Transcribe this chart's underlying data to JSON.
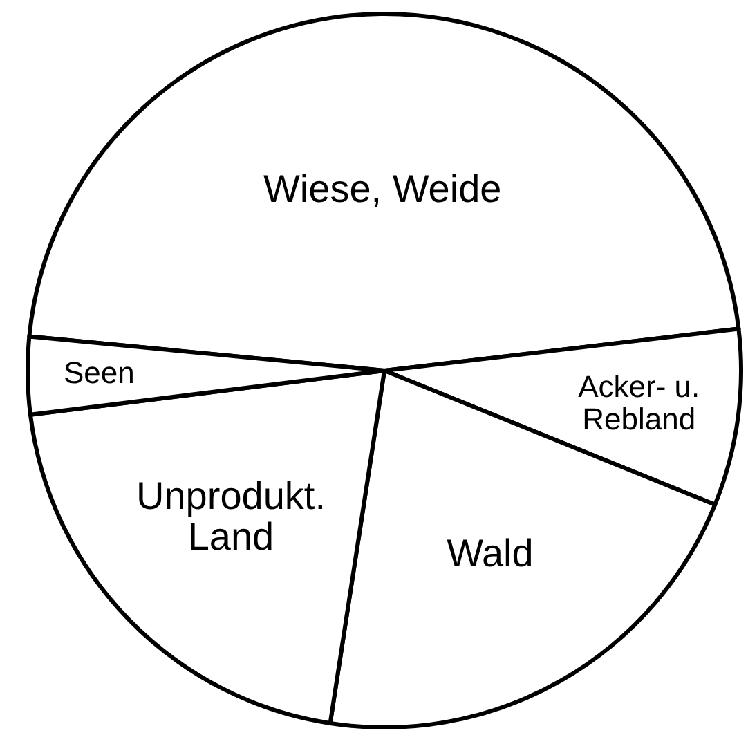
{
  "chart_data": {
    "type": "pie",
    "categories": [
      "Wiese, Weide",
      "Acker- u. Rebland",
      "Wald",
      "Unprodukt. Land",
      "Seen"
    ],
    "values": [
      46.6,
      8,
      21.3,
      20.6,
      3.5
    ],
    "colors": [
      "#ffffff",
      "#ffffff",
      "#ffffff",
      "#ffffff",
      "#ffffff"
    ]
  }
}
